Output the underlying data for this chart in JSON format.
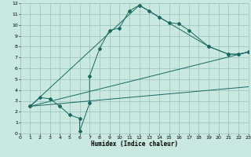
{
  "title": "",
  "xlabel": "Humidex (Indice chaleur)",
  "ylabel": "",
  "xlim": [
    0,
    23
  ],
  "ylim": [
    0,
    12
  ],
  "xticks": [
    0,
    1,
    2,
    3,
    4,
    5,
    6,
    7,
    8,
    9,
    10,
    11,
    12,
    13,
    14,
    15,
    16,
    17,
    18,
    19,
    20,
    21,
    22,
    23
  ],
  "yticks": [
    0,
    1,
    2,
    3,
    4,
    5,
    6,
    7,
    8,
    9,
    10,
    11,
    12
  ],
  "bg_color": "#c8e8e0",
  "grid_color": "#a0c8c0",
  "line_color": "#1a6860",
  "line1_x": [
    1,
    2,
    3,
    4,
    5,
    6,
    6,
    7,
    7,
    8,
    9,
    10,
    11,
    12,
    13,
    14,
    15,
    16,
    17,
    19,
    21,
    22,
    23
  ],
  "line1_y": [
    2.5,
    3.3,
    3.2,
    2.5,
    1.7,
    1.4,
    0.2,
    2.8,
    5.3,
    7.8,
    9.5,
    9.7,
    11.3,
    11.8,
    11.3,
    10.7,
    10.2,
    10.1,
    9.5,
    8.0,
    7.3,
    7.3,
    7.5
  ],
  "line2_x": [
    1,
    23
  ],
  "line2_y": [
    2.5,
    7.5
  ],
  "line3_x": [
    1,
    23
  ],
  "line3_y": [
    2.5,
    4.3
  ],
  "line4_x": [
    1,
    12,
    19,
    21,
    22,
    23
  ],
  "line4_y": [
    2.5,
    11.8,
    8.0,
    7.3,
    7.3,
    7.5
  ]
}
